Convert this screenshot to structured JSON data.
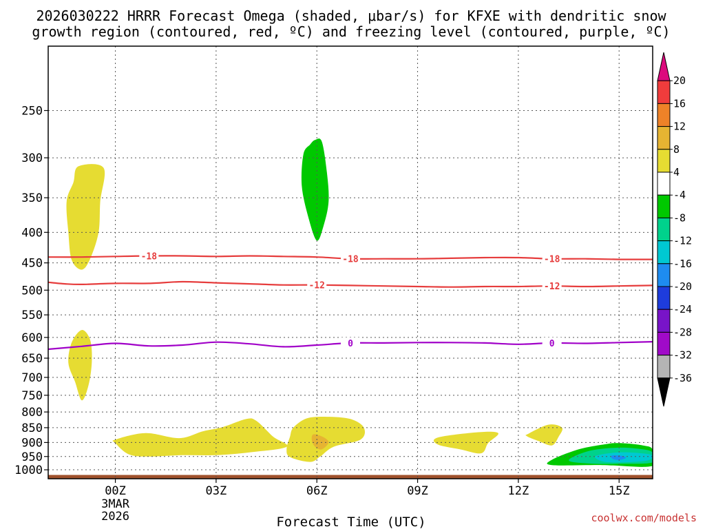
{
  "chart_data": {
    "type": "heatmap",
    "title_line1": "2026030222 HRRR Forecast Omega (shaded, μbar/s) for KFXE with dendritic snow",
    "title_line2": "growth region (contoured, red, ºC) and freezing level (contoured, purple, ºC)",
    "xlabel": "Forecast Time (UTC)",
    "credit": "coolwx.com/models",
    "x_range_hours": [
      -2.0,
      16.0
    ],
    "x_ticks": [
      {
        "hour": 0,
        "label": "00Z",
        "sub1": "3MAR",
        "sub2": "2026"
      },
      {
        "hour": 3,
        "label": "03Z"
      },
      {
        "hour": 6,
        "label": "06Z"
      },
      {
        "hour": 9,
        "label": "09Z"
      },
      {
        "hour": 12,
        "label": "12Z"
      },
      {
        "hour": 15,
        "label": "15Z"
      }
    ],
    "y_axis": "pressure (hPa), log scale, inverted",
    "y_range_hPa": [
      1035,
      195
    ],
    "y_ticks": [
      250,
      300,
      350,
      400,
      450,
      500,
      550,
      600,
      650,
      700,
      750,
      800,
      850,
      900,
      950,
      1000
    ],
    "ground_band_hPa": [
      1035,
      1020
    ],
    "ground_color": "#a0522d",
    "colorbar": {
      "boundaries": [
        20,
        16,
        12,
        8,
        4,
        -4,
        -8,
        -12,
        -16,
        -20,
        -24,
        -28,
        -32,
        -36
      ],
      "colors": [
        "#dc0a7d",
        "#f03c3c",
        "#ee8228",
        "#e6b432",
        "#e6dc32",
        "#ffffff",
        "#00c800",
        "#00d28c",
        "#00c8d2",
        "#1e8cf0",
        "#1e3cdc",
        "#7814c8",
        "#a00ac8",
        "#b4b4b4",
        "#000000"
      ]
    },
    "contours": [
      {
        "label": "-18",
        "color": "#e63c3c",
        "points": [
          [
            -2.0,
            440
          ],
          [
            -1.0,
            440
          ],
          [
            0.0,
            439
          ],
          [
            1.0,
            438
          ],
          [
            2.0,
            438
          ],
          [
            3.0,
            439
          ],
          [
            4.0,
            438
          ],
          [
            5.0,
            439
          ],
          [
            6.0,
            440
          ],
          [
            7.0,
            443
          ],
          [
            8.0,
            443
          ],
          [
            9.0,
            443
          ],
          [
            10.0,
            442
          ],
          [
            11.0,
            441
          ],
          [
            12.0,
            441
          ],
          [
            13.0,
            443
          ],
          [
            14.0,
            443
          ],
          [
            15.0,
            444
          ],
          [
            16.0,
            444
          ]
        ],
        "label_hours": [
          1.0,
          7.0,
          13.0
        ]
      },
      {
        "label": "-12",
        "color": "#e63c3c",
        "points": [
          [
            -2.0,
            485
          ],
          [
            -1.5,
            488
          ],
          [
            -1.0,
            489
          ],
          [
            0.0,
            487
          ],
          [
            1.0,
            487
          ],
          [
            2.0,
            484
          ],
          [
            3.0,
            486
          ],
          [
            4.0,
            488
          ],
          [
            5.0,
            490
          ],
          [
            6.0,
            490
          ],
          [
            7.0,
            491
          ],
          [
            8.0,
            492
          ],
          [
            9.0,
            493
          ],
          [
            10.0,
            494
          ],
          [
            11.0,
            493
          ],
          [
            12.0,
            493
          ],
          [
            13.0,
            492
          ],
          [
            14.0,
            493
          ],
          [
            15.0,
            492
          ],
          [
            16.0,
            491
          ]
        ],
        "label_hours": [
          6.0,
          13.0
        ]
      },
      {
        "label": "0",
        "color": "#a000c8",
        "points": [
          [
            -2.0,
            628
          ],
          [
            -1.0,
            621
          ],
          [
            0.0,
            614
          ],
          [
            1.0,
            620
          ],
          [
            2.0,
            618
          ],
          [
            3.0,
            611
          ],
          [
            4.0,
            615
          ],
          [
            5.0,
            622
          ],
          [
            6.0,
            618
          ],
          [
            7.0,
            613
          ],
          [
            8.0,
            613
          ],
          [
            9.0,
            612
          ],
          [
            10.0,
            612
          ],
          [
            11.0,
            613
          ],
          [
            12.0,
            616
          ],
          [
            13.0,
            613
          ],
          [
            14.0,
            614
          ],
          [
            15.0,
            612
          ],
          [
            16.0,
            610
          ]
        ],
        "label_hours": [
          7.0,
          13.0
        ]
      }
    ],
    "regions": [
      {
        "name": "yellow-upper-left",
        "level": "4 to 8",
        "color": "#e6dc32",
        "points": [
          [
            -1.1,
            310
          ],
          [
            -0.35,
            312
          ],
          [
            -0.45,
            355
          ],
          [
            -0.5,
            400
          ],
          [
            -0.75,
            443
          ],
          [
            -1.0,
            462
          ],
          [
            -1.3,
            445
          ],
          [
            -1.4,
            400
          ],
          [
            -1.45,
            355
          ],
          [
            -1.25,
            330
          ]
        ]
      },
      {
        "name": "yellow-mid-left",
        "level": "4 to 8",
        "color": "#e6dc32",
        "points": [
          [
            -1.0,
            583
          ],
          [
            -0.75,
            606
          ],
          [
            -0.7,
            658
          ],
          [
            -0.8,
            722
          ],
          [
            -1.0,
            765
          ],
          [
            -1.2,
            712
          ],
          [
            -1.4,
            662
          ],
          [
            -1.3,
            612
          ]
        ]
      },
      {
        "name": "green-upper-mid",
        "level": "-4 to -8",
        "color": "#00c800",
        "points": [
          [
            5.95,
            280
          ],
          [
            6.15,
            282
          ],
          [
            6.3,
            318
          ],
          [
            6.35,
            355
          ],
          [
            6.2,
            390
          ],
          [
            6.0,
            413
          ],
          [
            5.75,
            378
          ],
          [
            5.55,
            334
          ],
          [
            5.6,
            296
          ],
          [
            5.8,
            285
          ]
        ]
      },
      {
        "name": "yellow-low-1",
        "level": "4 to 8",
        "color": "#e6dc32",
        "points": [
          [
            0.0,
            890
          ],
          [
            0.9,
            868
          ],
          [
            1.9,
            885
          ],
          [
            2.6,
            862
          ],
          [
            3.2,
            848
          ],
          [
            3.9,
            822
          ],
          [
            4.2,
            828
          ],
          [
            4.7,
            880
          ],
          [
            5.1,
            915
          ],
          [
            4.0,
            935
          ],
          [
            3.0,
            945
          ],
          [
            2.0,
            945
          ],
          [
            1.0,
            950
          ],
          [
            0.4,
            942
          ],
          [
            0.0,
            902
          ]
        ]
      },
      {
        "name": "yellow-low-2",
        "level": "4 to 8",
        "color": "#e6dc32",
        "points": [
          [
            5.3,
            850
          ],
          [
            5.7,
            820
          ],
          [
            6.3,
            815
          ],
          [
            7.0,
            822
          ],
          [
            7.4,
            850
          ],
          [
            7.3,
            890
          ],
          [
            6.5,
            915
          ],
          [
            6.1,
            950
          ],
          [
            5.8,
            970
          ],
          [
            5.2,
            952
          ],
          [
            5.1,
            922
          ],
          [
            5.2,
            880
          ]
        ]
      },
      {
        "name": "orange-low-spot",
        "level": "8 to 12",
        "color": "#e6b432",
        "points": [
          [
            5.9,
            872
          ],
          [
            6.2,
            882
          ],
          [
            6.35,
            900
          ],
          [
            6.15,
            924
          ],
          [
            5.95,
            915
          ],
          [
            5.85,
            892
          ]
        ]
      },
      {
        "name": "yellow-low-3",
        "level": "4 to 8",
        "color": "#e6dc32",
        "points": [
          [
            9.6,
            883
          ],
          [
            10.8,
            865
          ],
          [
            11.4,
            868
          ],
          [
            11.1,
            902
          ],
          [
            10.9,
            938
          ],
          [
            10.3,
            925
          ],
          [
            9.6,
            907
          ]
        ]
      },
      {
        "name": "yellow-low-4",
        "level": "4 to 8",
        "color": "#e6dc32",
        "points": [
          [
            12.3,
            870
          ],
          [
            12.9,
            840
          ],
          [
            13.3,
            850
          ],
          [
            13.2,
            880
          ],
          [
            13.0,
            910
          ],
          [
            12.6,
            895
          ],
          [
            12.25,
            878
          ]
        ]
      },
      {
        "name": "green-low-right",
        "level": "-4 to -8",
        "color": "#00c800",
        "points": [
          [
            13.0,
            962
          ],
          [
            13.8,
            924
          ],
          [
            14.6,
            906
          ],
          [
            15.0,
            902
          ],
          [
            15.7,
            910
          ],
          [
            16.0,
            925
          ],
          [
            16.0,
            985
          ],
          [
            14.5,
            982
          ],
          [
            13.0,
            982
          ]
        ]
      },
      {
        "name": "teal-low-right",
        "level": "-8 to -12",
        "color": "#00d28c",
        "points": [
          [
            13.5,
            964
          ],
          [
            14.1,
            930
          ],
          [
            15.0,
            918
          ],
          [
            15.7,
            924
          ],
          [
            16.0,
            936
          ],
          [
            16.0,
            972
          ],
          [
            15.0,
            977
          ],
          [
            14.1,
            976
          ]
        ]
      },
      {
        "name": "cyan-low-right",
        "level": "-12 to -16",
        "color": "#00c8d2",
        "points": [
          [
            14.3,
            948
          ],
          [
            15.0,
            935
          ],
          [
            15.8,
            940
          ],
          [
            16.0,
            950
          ],
          [
            15.8,
            966
          ],
          [
            15.0,
            972
          ],
          [
            14.5,
            968
          ]
        ]
      },
      {
        "name": "blue-low-spot",
        "level": "-16 to -20",
        "color": "#1e8cf0",
        "points": [
          [
            14.8,
            946
          ],
          [
            15.1,
            948
          ],
          [
            15.2,
            955
          ],
          [
            15.0,
            963
          ],
          [
            14.8,
            958
          ]
        ]
      }
    ]
  }
}
